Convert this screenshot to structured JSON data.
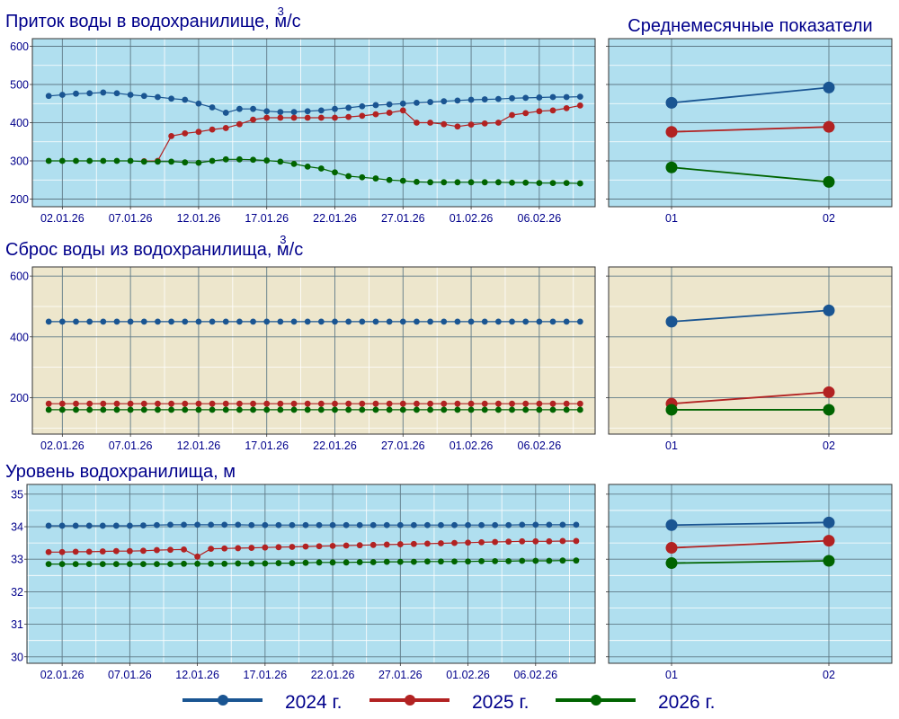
{
  "legend": [
    {
      "label": "2024 г.",
      "color": "#1a5592"
    },
    {
      "label": "2025 г.",
      "color": "#b22222"
    },
    {
      "label": "2026 г.",
      "color": "#006400"
    }
  ],
  "summary_title": "Среднемесячные показатели",
  "colors": {
    "panel_blue": "#b0dfef",
    "panel_beige": "#ede6cc",
    "grid_major": "#5f7a87",
    "grid_minor": "#ffffff",
    "text": "#00008b"
  },
  "chart_data": [
    {
      "type": "line",
      "id": "inflow",
      "title": "Приток воды в водохранилище, м/с",
      "title_superscript": "3",
      "x_tick_labels": [
        "02.01.26",
        "07.01.26",
        "12.01.26",
        "17.01.26",
        "22.01.26",
        "27.01.26",
        "01.02.26",
        "06.02.26"
      ],
      "x_tick_days": [
        2,
        7,
        12,
        17,
        22,
        27,
        32,
        37
      ],
      "x_range": [
        -0.2,
        41.1
      ],
      "ylim": [
        180,
        620
      ],
      "y_ticks": [
        200,
        300,
        400,
        500,
        600
      ],
      "series": [
        {
          "name": "2024 г.",
          "x": [
            1,
            2,
            3,
            4,
            5,
            6,
            7,
            8,
            9,
            10,
            11,
            12,
            13,
            14,
            15,
            16,
            17,
            18,
            19,
            20,
            21,
            22,
            23,
            24,
            25,
            26,
            27,
            28,
            29,
            30,
            31,
            32,
            33,
            34,
            35,
            36,
            37,
            38,
            39,
            40
          ],
          "values": [
            470,
            473,
            476,
            477,
            479,
            477,
            473,
            470,
            467,
            463,
            460,
            450,
            440,
            426,
            436,
            436,
            430,
            428,
            428,
            430,
            432,
            436,
            439,
            443,
            446,
            448,
            450,
            452,
            454,
            456,
            458,
            460,
            461,
            462,
            464,
            465,
            466,
            467,
            467,
            468
          ]
        },
        {
          "name": "2025 г.",
          "x": [
            8,
            9,
            10,
            11,
            12,
            13,
            14,
            15,
            16,
            17,
            18,
            19,
            20,
            21,
            22,
            23,
            24,
            25,
            26,
            27,
            28,
            29,
            30,
            31,
            32,
            33,
            34,
            35,
            36,
            37,
            38,
            39,
            40
          ],
          "values": [
            299,
            300,
            365,
            372,
            376,
            382,
            386,
            396,
            408,
            413,
            413,
            413,
            413,
            413,
            413,
            415,
            418,
            422,
            426,
            432,
            400,
            400,
            396,
            390,
            395,
            398,
            400,
            420,
            425,
            430,
            432,
            438,
            445
          ]
        },
        {
          "name": "2026 г.",
          "x": [
            1,
            2,
            3,
            4,
            5,
            6,
            7,
            8,
            9,
            10,
            11,
            12,
            13,
            14,
            15,
            16,
            17,
            18,
            19,
            20,
            21,
            22,
            23,
            24,
            25,
            26,
            27,
            28,
            29,
            30,
            31,
            32,
            33,
            34,
            35,
            36,
            37,
            38,
            39,
            40
          ],
          "values": [
            300,
            300,
            300,
            300,
            300,
            300,
            300,
            298,
            298,
            298,
            296,
            295,
            300,
            304,
            304,
            303,
            301,
            298,
            292,
            285,
            280,
            270,
            260,
            257,
            254,
            250,
            248,
            245,
            244,
            244,
            244,
            244,
            244,
            244,
            243,
            243,
            242,
            242,
            242,
            241
          ]
        }
      ],
      "summary": {
        "categories": [
          "01",
          "02"
        ],
        "series": [
          {
            "name": "2024 г.",
            "values": [
              452,
              492
            ]
          },
          {
            "name": "2025 г.",
            "values": [
              376,
              389
            ]
          },
          {
            "name": "2026 г.",
            "values": [
              283,
              245
            ]
          }
        ]
      }
    },
    {
      "type": "line",
      "id": "outflow",
      "title": "Сброс воды из водохранилища, м/с",
      "title_superscript": "3",
      "x_tick_labels": [
        "02.01.26",
        "07.01.26",
        "12.01.26",
        "17.01.26",
        "22.01.26",
        "27.01.26",
        "01.02.26",
        "06.02.26"
      ],
      "x_tick_days": [
        2,
        7,
        12,
        17,
        22,
        27,
        32,
        37
      ],
      "x_range": [
        -0.2,
        41.1
      ],
      "ylim": [
        80,
        630
      ],
      "y_ticks": [
        200,
        400,
        600
      ],
      "series": [
        {
          "name": "2024 г.",
          "x": [
            1,
            2,
            3,
            4,
            5,
            6,
            7,
            8,
            9,
            10,
            11,
            12,
            13,
            14,
            15,
            16,
            17,
            18,
            19,
            20,
            21,
            22,
            23,
            24,
            25,
            26,
            27,
            28,
            29,
            30,
            31,
            32,
            33,
            34,
            35,
            36,
            37,
            38,
            39,
            40
          ],
          "values": [
            450,
            450,
            450,
            450,
            450,
            450,
            450,
            450,
            450,
            450,
            450,
            450,
            450,
            450,
            450,
            450,
            450,
            450,
            450,
            450,
            450,
            450,
            450,
            450,
            450,
            450,
            450,
            450,
            450,
            450,
            450,
            450,
            450,
            450,
            450,
            450,
            450,
            450,
            450,
            450
          ]
        },
        {
          "name": "2025 г.",
          "x": [
            1,
            2,
            3,
            4,
            5,
            6,
            7,
            8,
            9,
            10,
            11,
            12,
            13,
            14,
            15,
            16,
            17,
            18,
            19,
            20,
            21,
            22,
            23,
            24,
            25,
            26,
            27,
            28,
            29,
            30,
            31,
            32,
            33,
            34,
            35,
            36,
            37,
            38,
            39,
            40
          ],
          "values": [
            180,
            180,
            180,
            180,
            180,
            180,
            180,
            180,
            180,
            180,
            180,
            180,
            180,
            180,
            180,
            180,
            180,
            180,
            180,
            180,
            180,
            180,
            180,
            180,
            180,
            180,
            180,
            180,
            180,
            180,
            180,
            180,
            180,
            180,
            180,
            180,
            180,
            180,
            180,
            180
          ]
        },
        {
          "name": "2026 г.",
          "x": [
            1,
            2,
            3,
            4,
            5,
            6,
            7,
            8,
            9,
            10,
            11,
            12,
            13,
            14,
            15,
            16,
            17,
            18,
            19,
            20,
            21,
            22,
            23,
            24,
            25,
            26,
            27,
            28,
            29,
            30,
            31,
            32,
            33,
            34,
            35,
            36,
            37,
            38,
            39,
            40
          ],
          "values": [
            160,
            160,
            160,
            160,
            160,
            160,
            160,
            160,
            160,
            160,
            160,
            160,
            160,
            160,
            160,
            160,
            160,
            160,
            160,
            160,
            160,
            160,
            160,
            160,
            160,
            160,
            160,
            160,
            160,
            160,
            160,
            160,
            160,
            160,
            160,
            160,
            160,
            160,
            160,
            160
          ]
        }
      ],
      "summary": {
        "categories": [
          "01",
          "02"
        ],
        "series": [
          {
            "name": "2024 г.",
            "values": [
              450,
              487
            ]
          },
          {
            "name": "2025 г.",
            "values": [
              180,
              218
            ]
          },
          {
            "name": "2026 г.",
            "values": [
              160,
              160
            ]
          }
        ]
      }
    },
    {
      "type": "line",
      "id": "level",
      "title": "Уровень водохранилища, м",
      "x_tick_labels": [
        "02.01.26",
        "07.01.26",
        "12.01.26",
        "17.01.26",
        "22.01.26",
        "27.01.26",
        "01.02.26",
        "06.02.26"
      ],
      "x_tick_days": [
        2,
        7,
        12,
        17,
        22,
        27,
        32,
        37
      ],
      "x_range": [
        -0.6,
        41.4
      ],
      "ylim": [
        29.8,
        35.3
      ],
      "y_ticks": [
        30,
        31,
        32,
        33,
        34,
        35
      ],
      "series": [
        {
          "name": "2024 г.",
          "x": [
            1,
            2,
            3,
            4,
            5,
            6,
            7,
            8,
            9,
            10,
            11,
            12,
            13,
            14,
            15,
            16,
            17,
            18,
            19,
            20,
            21,
            22,
            23,
            24,
            25,
            26,
            27,
            28,
            29,
            30,
            31,
            32,
            33,
            34,
            35,
            36,
            37,
            38,
            39,
            40
          ],
          "values": [
            34.03,
            34.03,
            34.03,
            34.03,
            34.03,
            34.03,
            34.03,
            34.04,
            34.05,
            34.06,
            34.06,
            34.06,
            34.06,
            34.06,
            34.06,
            34.05,
            34.05,
            34.05,
            34.05,
            34.05,
            34.05,
            34.05,
            34.05,
            34.05,
            34.05,
            34.05,
            34.05,
            34.05,
            34.05,
            34.05,
            34.05,
            34.05,
            34.05,
            34.05,
            34.05,
            34.06,
            34.06,
            34.06,
            34.06,
            34.06
          ]
        },
        {
          "name": "2025 г.",
          "x": [
            1,
            2,
            3,
            4,
            5,
            6,
            7,
            8,
            9,
            10,
            11,
            12,
            13,
            14,
            15,
            16,
            17,
            18,
            19,
            20,
            21,
            22,
            23,
            24,
            25,
            26,
            27,
            28,
            29,
            30,
            31,
            32,
            33,
            34,
            35,
            36,
            37,
            38,
            39,
            40
          ],
          "values": [
            33.22,
            33.22,
            33.23,
            33.23,
            33.24,
            33.25,
            33.25,
            33.26,
            33.28,
            33.29,
            33.3,
            33.08,
            33.32,
            33.33,
            33.34,
            33.35,
            33.36,
            33.37,
            33.38,
            33.39,
            33.4,
            33.41,
            33.42,
            33.43,
            33.44,
            33.45,
            33.46,
            33.47,
            33.48,
            33.49,
            33.5,
            33.51,
            33.52,
            33.53,
            33.54,
            33.55,
            33.55,
            33.55,
            33.56,
            33.56
          ]
        },
        {
          "name": "2026 г.",
          "x": [
            1,
            2,
            3,
            4,
            5,
            6,
            7,
            8,
            9,
            10,
            11,
            12,
            13,
            14,
            15,
            16,
            17,
            18,
            19,
            20,
            21,
            22,
            23,
            24,
            25,
            26,
            27,
            28,
            29,
            30,
            31,
            32,
            33,
            34,
            35,
            36,
            37,
            38,
            39,
            40
          ],
          "values": [
            32.85,
            32.85,
            32.85,
            32.85,
            32.85,
            32.85,
            32.85,
            32.85,
            32.85,
            32.85,
            32.86,
            32.86,
            32.86,
            32.86,
            32.87,
            32.87,
            32.87,
            32.88,
            32.88,
            32.89,
            32.9,
            32.9,
            32.9,
            32.91,
            32.91,
            32.92,
            32.92,
            32.92,
            32.93,
            32.93,
            32.93,
            32.93,
            32.94,
            32.94,
            32.94,
            32.95,
            32.95,
            32.95,
            32.96,
            32.96
          ]
        }
      ],
      "summary": {
        "categories": [
          "01",
          "02"
        ],
        "series": [
          {
            "name": "2024 г.",
            "values": [
              34.05,
              34.13
            ]
          },
          {
            "name": "2025 г.",
            "values": [
              33.35,
              33.57
            ]
          },
          {
            "name": "2026 г.",
            "values": [
              32.88,
              32.95
            ]
          }
        ]
      }
    }
  ]
}
